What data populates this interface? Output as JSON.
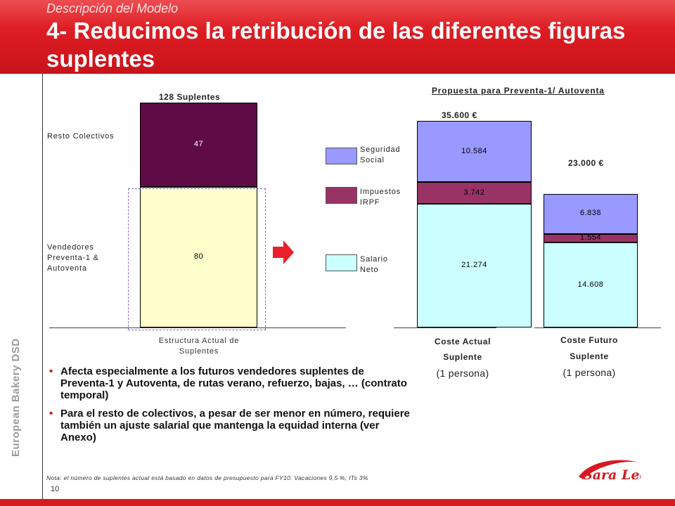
{
  "header": {
    "subtitle": "Descripción del Modelo",
    "title": "4- Reducimos la retribución de las diferentes figuras suplentes"
  },
  "side_brand": "European Bakery DSD",
  "left_chart": {
    "total_label": "128 Suplentes",
    "category_label": "Estructura  Actual de Suplentes",
    "segments": [
      {
        "name": "Resto Colectivos",
        "value": 47,
        "color": "#5e0b46"
      },
      {
        "name": "Vendedores Preventa-1 & Autoventa",
        "value": 80,
        "color": "#ffffcc"
      }
    ]
  },
  "right_chart": {
    "title": "Propuesta para Preventa-1/ Autoventa",
    "legend": [
      {
        "name": "Seguridad Social",
        "color": "#9999ff"
      },
      {
        "name": "Impuestos IRPF",
        "color": "#993366"
      },
      {
        "name": "Salario Neto",
        "color": "#ccffff"
      }
    ],
    "bars": [
      {
        "total_label": "35.600 €",
        "cat1": "Coste Actual",
        "cat2": "Suplente",
        "cat3": "(1 persona)",
        "values": {
          "neto": 21.274,
          "irpf": 3.742,
          "ss": 10.584
        },
        "labels": {
          "neto": "21.274",
          "irpf": "3.742",
          "ss": "10.584"
        }
      },
      {
        "total_label": "23.000 €",
        "cat1": "Coste Futuro",
        "cat2": "Suplente",
        "cat3": "(1 persona)",
        "values": {
          "neto": 14.608,
          "irpf": 1.554,
          "ss": 6.838
        },
        "labels": {
          "neto": "14.608",
          "irpf": "1.554",
          "ss": "6.838"
        }
      }
    ]
  },
  "bullets": [
    "Afecta especialmente a los futuros vendedores suplentes de Preventa-1 y Autoventa, de rutas verano, refuerzo, bajas, … (contrato temporal)",
    "Para el resto de colectivos, a pesar de ser menor en número, requiere también un ajuste salarial que mantenga la equidad interna (ver Anexo)"
  ],
  "bullet_symbol": "•",
  "note": "Nota: el número de suplentes actual está basado en datos de presupuesto para FY10. Vacaciones 9,5 %; ITs 3%",
  "page_number": "10",
  "logo_text": "Sara Lee",
  "chart_data": [
    {
      "type": "bar",
      "stacked": true,
      "categories": [
        "Estructura  Actual de Suplentes"
      ],
      "series": [
        {
          "name": "Vendedores Preventa-1 & Autoventa",
          "values": [
            80
          ]
        },
        {
          "name": "Resto Colectivos",
          "values": [
            47
          ]
        }
      ],
      "title": "128 Suplentes",
      "ylim": [
        0,
        128
      ]
    },
    {
      "type": "bar",
      "stacked": true,
      "categories": [
        "Coste Actual Suplente (1 persona)",
        "Coste Futuro Suplente (1 persona)"
      ],
      "series": [
        {
          "name": "Salario Neto",
          "values": [
            21.274,
            14.608
          ]
        },
        {
          "name": "Impuestos IRPF",
          "values": [
            3.742,
            1.554
          ]
        },
        {
          "name": "Seguridad Social",
          "values": [
            10.584,
            6.838
          ]
        }
      ],
      "totals": [
        "35.600 €",
        "23.000 €"
      ],
      "title": "Propuesta para Preventa-1/ Autoventa",
      "ylim": [
        0,
        35.6
      ]
    }
  ]
}
